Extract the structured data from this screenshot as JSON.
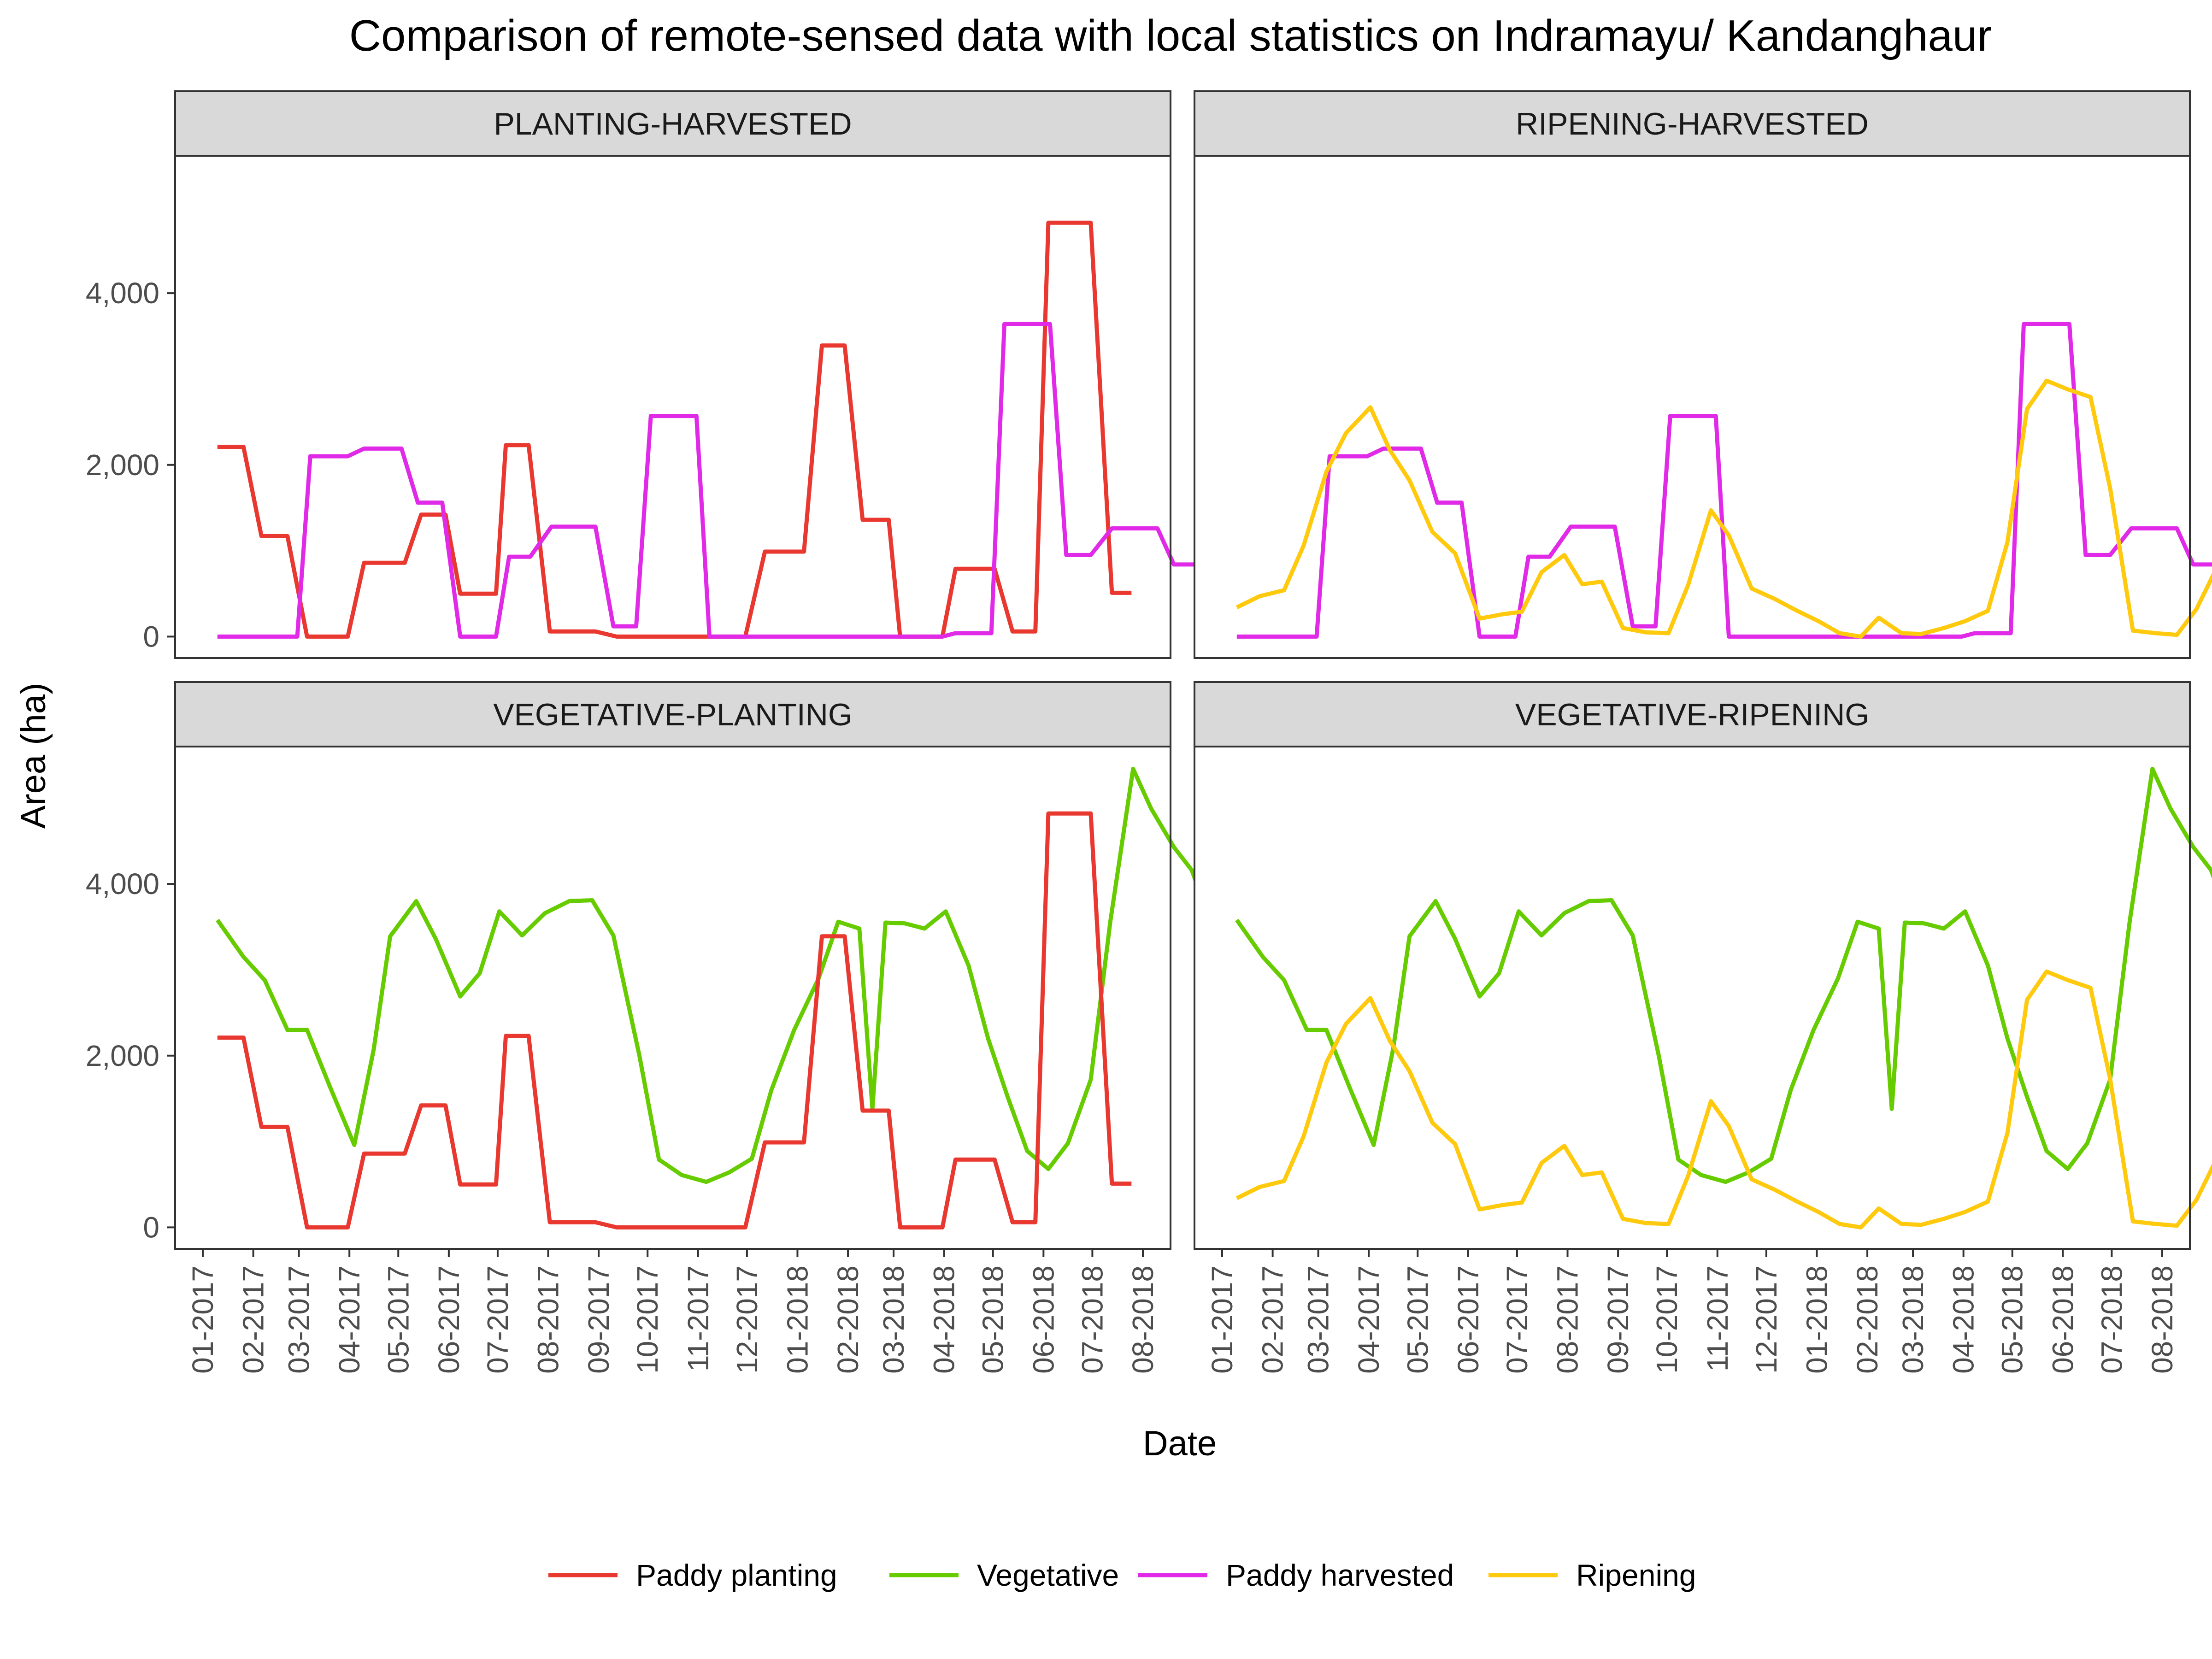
{
  "chart_data": {
    "type": "line",
    "title": "Comparison of remote-sensed data with local statistics on Indramayu/ Kandanghaur",
    "xlabel": "Date",
    "ylabel": "Area (ha)",
    "ylim": [
      -250,
      5600
    ],
    "y_ticks": [
      0,
      2000,
      4000
    ],
    "y_tick_labels": [
      "0",
      "2,000",
      "4,000"
    ],
    "x_ticks": [
      "2017-01-01",
      "2017-02-01",
      "2017-03-01",
      "2017-04-01",
      "2017-05-01",
      "2017-06-01",
      "2017-07-01",
      "2017-08-01",
      "2017-09-01",
      "2017-10-01",
      "2017-11-01",
      "2017-12-01",
      "2018-01-01",
      "2018-02-01",
      "2018-03-01",
      "2018-04-01",
      "2018-05-01",
      "2018-06-01",
      "2018-07-01",
      "2018-08-01"
    ],
    "x_tick_labels": [
      "01-2017",
      "02-2017",
      "03-2017",
      "04-2017",
      "05-2017",
      "06-2017",
      "07-2017",
      "08-2017",
      "09-2017",
      "10-2017",
      "11-2017",
      "12-2017",
      "01-2018",
      "02-2018",
      "03-2018",
      "04-2018",
      "05-2018",
      "06-2018",
      "07-2018",
      "08-2018"
    ],
    "grid": false,
    "legend_position": "bottom",
    "series": [
      {
        "name": "Paddy planting",
        "color": "#E8382F",
        "points": [
          [
            "2017-01-10",
            2210
          ],
          [
            "2017-01-26",
            2210
          ],
          [
            "2017-02-06",
            1170
          ],
          [
            "2017-02-22",
            1170
          ],
          [
            "2017-03-06",
            0
          ],
          [
            "2017-03-31",
            0
          ],
          [
            "2017-04-10",
            860
          ],
          [
            "2017-05-05",
            860
          ],
          [
            "2017-05-15",
            1420
          ],
          [
            "2017-05-30",
            1420
          ],
          [
            "2017-06-08",
            500
          ],
          [
            "2017-06-30",
            500
          ],
          [
            "2017-07-06",
            2230
          ],
          [
            "2017-07-20",
            2230
          ],
          [
            "2017-08-02",
            60
          ],
          [
            "2017-08-30",
            60
          ],
          [
            "2017-09-12",
            0
          ],
          [
            "2017-11-30",
            0
          ],
          [
            "2017-12-12",
            990
          ],
          [
            "2018-01-05",
            990
          ],
          [
            "2018-01-16",
            3390
          ],
          [
            "2018-01-30",
            3390
          ],
          [
            "2018-02-10",
            1360
          ],
          [
            "2018-02-26",
            1360
          ],
          [
            "2018-03-05",
            0
          ],
          [
            "2018-03-31",
            0
          ],
          [
            "2018-04-08",
            790
          ],
          [
            "2018-05-02",
            790
          ],
          [
            "2018-05-13",
            60
          ],
          [
            "2018-05-27",
            60
          ],
          [
            "2018-06-04",
            4820
          ],
          [
            "2018-06-30",
            4820
          ],
          [
            "2018-07-13",
            510
          ],
          [
            "2018-07-25",
            510
          ]
        ]
      },
      {
        "name": "Vegetative",
        "color": "#66CC00",
        "points": [
          [
            "2017-01-10",
            3580
          ],
          [
            "2017-01-26",
            3150
          ],
          [
            "2017-02-08",
            2880
          ],
          [
            "2017-02-22",
            2300
          ],
          [
            "2017-03-06",
            2300
          ],
          [
            "2017-03-20",
            1640
          ],
          [
            "2017-04-04",
            960
          ],
          [
            "2017-04-16",
            2080
          ],
          [
            "2017-04-26",
            3390
          ],
          [
            "2017-05-12",
            3800
          ],
          [
            "2017-05-24",
            3360
          ],
          [
            "2017-06-08",
            2690
          ],
          [
            "2017-06-20",
            2960
          ],
          [
            "2017-07-02",
            3680
          ],
          [
            "2017-07-16",
            3400
          ],
          [
            "2017-07-30",
            3660
          ],
          [
            "2017-08-14",
            3800
          ],
          [
            "2017-08-28",
            3810
          ],
          [
            "2017-09-10",
            3400
          ],
          [
            "2017-09-26",
            2000
          ],
          [
            "2017-10-08",
            790
          ],
          [
            "2017-10-22",
            610
          ],
          [
            "2017-11-06",
            530
          ],
          [
            "2017-11-20",
            640
          ],
          [
            "2017-12-04",
            800
          ],
          [
            "2017-12-16",
            1600
          ],
          [
            "2017-12-30",
            2300
          ],
          [
            "2018-01-14",
            2900
          ],
          [
            "2018-01-26",
            3560
          ],
          [
            "2018-02-08",
            3480
          ],
          [
            "2018-02-16",
            1380
          ],
          [
            "2018-02-24",
            3550
          ],
          [
            "2018-03-08",
            3540
          ],
          [
            "2018-03-20",
            3480
          ],
          [
            "2018-04-02",
            3680
          ],
          [
            "2018-04-16",
            3050
          ],
          [
            "2018-04-28",
            2200
          ],
          [
            "2018-05-10",
            1520
          ],
          [
            "2018-05-22",
            890
          ],
          [
            "2018-06-04",
            680
          ],
          [
            "2018-06-16",
            980
          ],
          [
            "2018-06-30",
            1720
          ],
          [
            "2018-07-12",
            3560
          ],
          [
            "2018-07-26",
            5340
          ],
          [
            "2018-08-06",
            4880
          ],
          [
            "2018-08-20",
            4430
          ],
          [
            "2018-08-31",
            4160
          ],
          [
            "2018-09-10",
            3640
          ]
        ]
      },
      {
        "name": "Paddy harvested",
        "color": "#E02AE8",
        "points": [
          [
            "2017-01-10",
            0
          ],
          [
            "2017-02-28",
            0
          ],
          [
            "2017-03-08",
            2100
          ],
          [
            "2017-03-31",
            2100
          ],
          [
            "2017-04-10",
            2190
          ],
          [
            "2017-05-03",
            2190
          ],
          [
            "2017-05-13",
            1560
          ],
          [
            "2017-05-28",
            1560
          ],
          [
            "2017-06-08",
            0
          ],
          [
            "2017-06-30",
            0
          ],
          [
            "2017-07-08",
            930
          ],
          [
            "2017-07-21",
            930
          ],
          [
            "2017-08-03",
            1280
          ],
          [
            "2017-08-30",
            1280
          ],
          [
            "2017-09-10",
            120
          ],
          [
            "2017-09-24",
            120
          ],
          [
            "2017-10-03",
            2570
          ],
          [
            "2017-10-31",
            2570
          ],
          [
            "2017-11-08",
            0
          ],
          [
            "2018-03-31",
            0
          ],
          [
            "2018-04-08",
            40
          ],
          [
            "2018-04-30",
            40
          ],
          [
            "2018-05-08",
            3640
          ],
          [
            "2018-06-05",
            3640
          ],
          [
            "2018-06-15",
            950
          ],
          [
            "2018-06-30",
            950
          ],
          [
            "2018-07-13",
            1260
          ],
          [
            "2018-08-10",
            1260
          ],
          [
            "2018-08-20",
            840
          ],
          [
            "2018-09-10",
            840
          ]
        ]
      },
      {
        "name": "Ripening",
        "color": "#FFC90E",
        "points": [
          [
            "2017-01-10",
            340
          ],
          [
            "2017-01-24",
            470
          ],
          [
            "2017-02-08",
            540
          ],
          [
            "2017-02-20",
            1060
          ],
          [
            "2017-03-06",
            1920
          ],
          [
            "2017-03-18",
            2370
          ],
          [
            "2017-04-02",
            2670
          ],
          [
            "2017-04-14",
            2170
          ],
          [
            "2017-04-26",
            1820
          ],
          [
            "2017-05-10",
            1220
          ],
          [
            "2017-05-24",
            970
          ],
          [
            "2017-06-08",
            210
          ],
          [
            "2017-06-22",
            260
          ],
          [
            "2017-07-04",
            290
          ],
          [
            "2017-07-16",
            750
          ],
          [
            "2017-07-30",
            950
          ],
          [
            "2017-08-10",
            610
          ],
          [
            "2017-08-22",
            640
          ],
          [
            "2017-09-04",
            100
          ],
          [
            "2017-09-18",
            50
          ],
          [
            "2017-10-02",
            40
          ],
          [
            "2017-10-14",
            600
          ],
          [
            "2017-10-28",
            1470
          ],
          [
            "2017-11-08",
            1180
          ],
          [
            "2017-11-22",
            560
          ],
          [
            "2017-12-06",
            440
          ],
          [
            "2017-12-20",
            300
          ],
          [
            "2018-01-02",
            180
          ],
          [
            "2018-01-15",
            40
          ],
          [
            "2018-01-28",
            0
          ],
          [
            "2018-02-08",
            220
          ],
          [
            "2018-02-22",
            40
          ],
          [
            "2018-03-06",
            30
          ],
          [
            "2018-03-20",
            100
          ],
          [
            "2018-04-02",
            180
          ],
          [
            "2018-04-16",
            300
          ],
          [
            "2018-04-28",
            1100
          ],
          [
            "2018-05-10",
            2650
          ],
          [
            "2018-05-22",
            2980
          ],
          [
            "2018-06-04",
            2880
          ],
          [
            "2018-06-18",
            2790
          ],
          [
            "2018-06-30",
            1730
          ],
          [
            "2018-07-14",
            70
          ],
          [
            "2018-07-28",
            40
          ],
          [
            "2018-08-10",
            20
          ],
          [
            "2018-08-22",
            320
          ],
          [
            "2018-09-05",
            860
          ]
        ]
      }
    ],
    "panels": [
      {
        "strip": "PLANTING-HARVESTED",
        "series": [
          "Paddy planting",
          "Paddy harvested"
        ]
      },
      {
        "strip": "RIPENING-HARVESTED",
        "series": [
          "Paddy harvested",
          "Ripening"
        ]
      },
      {
        "strip": "VEGETATIVE-PLANTING",
        "series": [
          "Vegetative",
          "Paddy planting"
        ]
      },
      {
        "strip": "VEGETATIVE-RIPENING",
        "series": [
          "Vegetative",
          "Ripening"
        ]
      }
    ]
  }
}
